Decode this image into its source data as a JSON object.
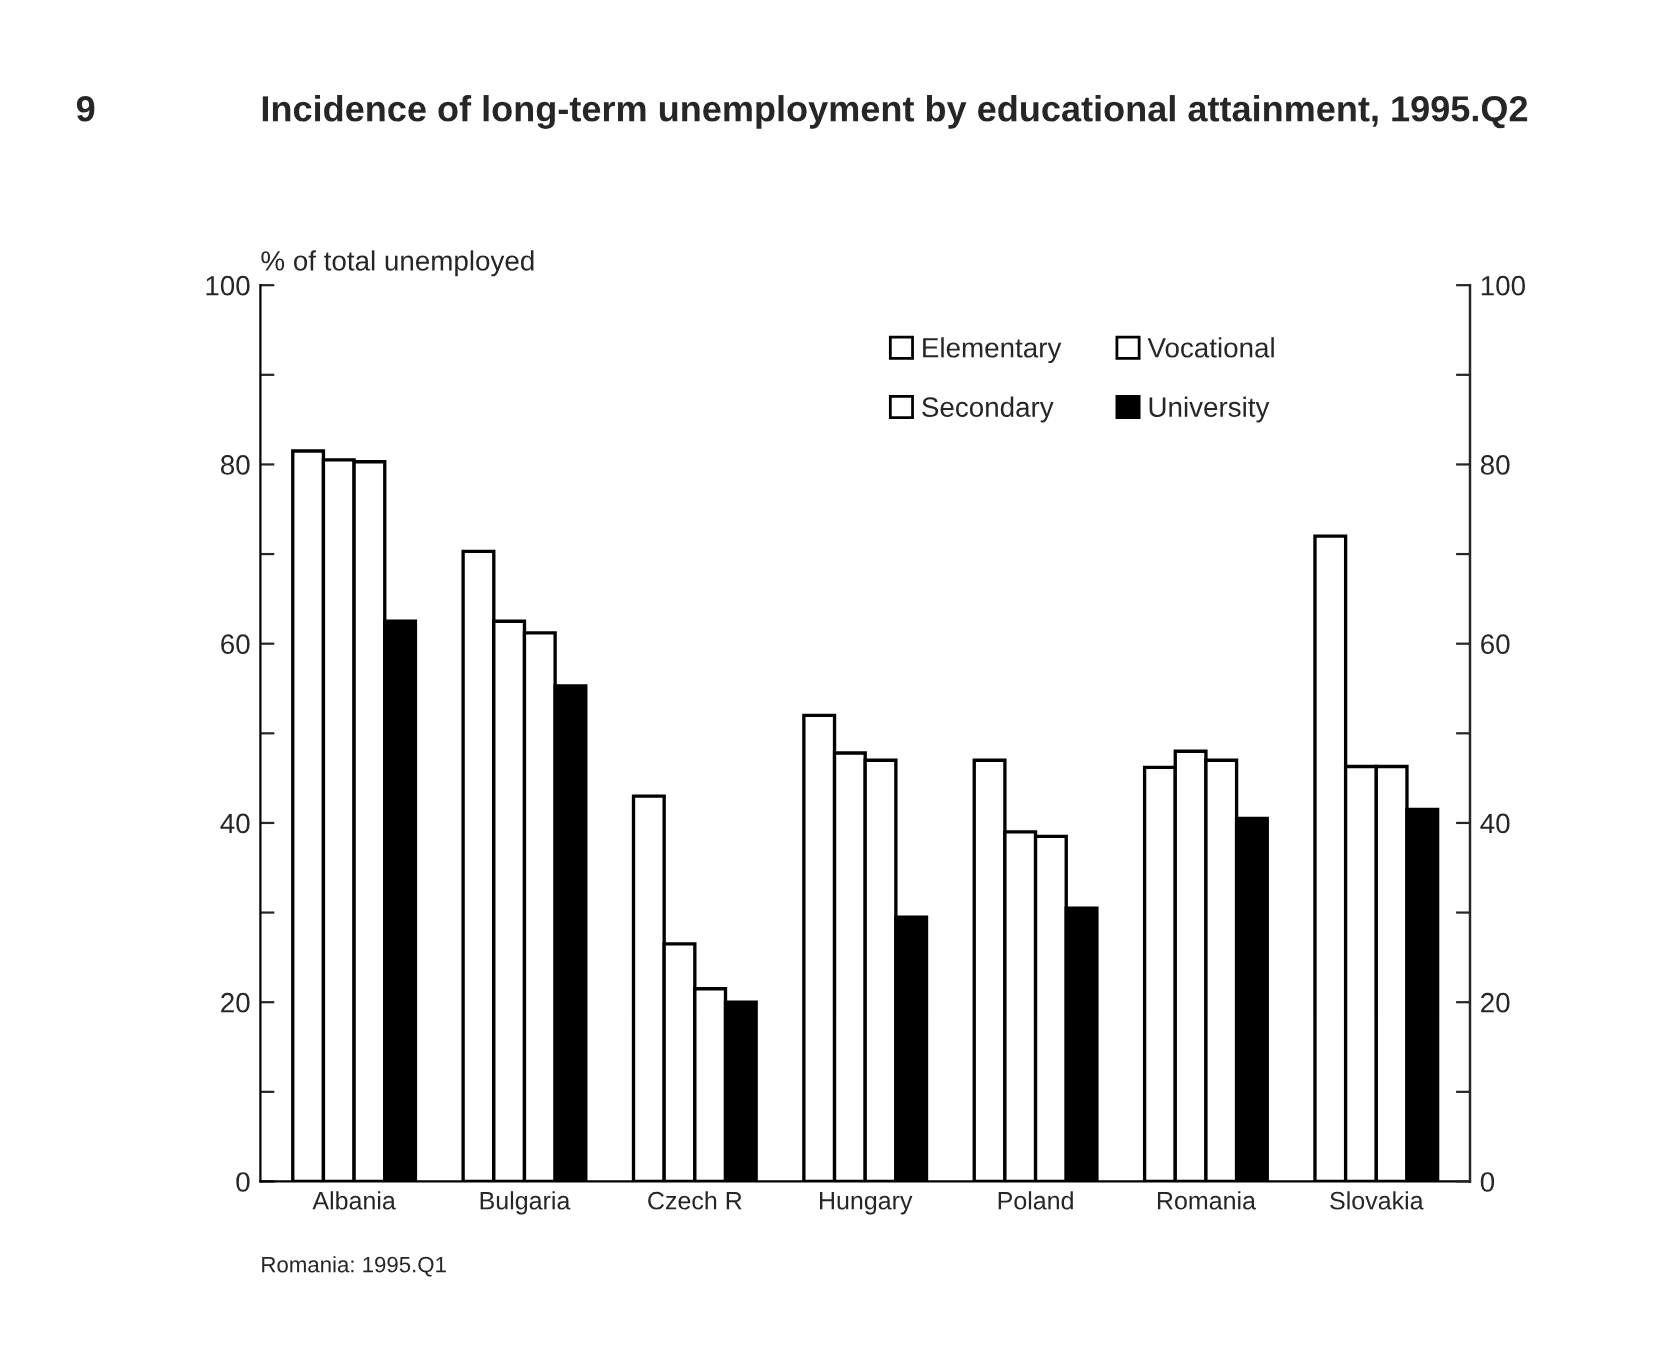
{
  "chart_data": {
    "type": "bar",
    "title": "Incidence of long-term unemployment by educational attainment, 1995.Q2",
    "ylabel": "% of total unemployed",
    "categories": [
      "Albania",
      "Bulgaria",
      "Czech R",
      "Hungary",
      "Poland",
      "Romania",
      "Slovakia"
    ],
    "series": [
      {
        "name": "Elementary",
        "color": "#ffffff",
        "values": [
          81.5,
          70.3,
          43,
          52,
          47,
          46.2,
          72
        ]
      },
      {
        "name": "Vocational",
        "color": "#ffffff",
        "values": [
          80.5,
          62.5,
          26.5,
          47.8,
          39,
          48,
          46.3
        ]
      },
      {
        "name": "Secondary",
        "color": "#ffffff",
        "values": [
          80.3,
          61.2,
          21.5,
          47,
          38.5,
          47,
          46.3
        ]
      },
      {
        "name": "University",
        "color": "#000000",
        "values": [
          62.5,
          55.3,
          20,
          29.5,
          30.5,
          40.5,
          41.5
        ]
      }
    ],
    "ylim": [
      0,
      100
    ],
    "yticks": [
      0,
      {
        "value": 10,
        "label": null
      },
      20,
      {
        "value": 30,
        "label": null
      },
      40,
      {
        "value": 50,
        "label": null
      },
      60,
      {
        "value": 70,
        "label": null
      },
      80,
      {
        "value": 90,
        "label": null
      },
      100
    ],
    "y2lim": [
      0,
      100
    ],
    "y2ticks": [
      0,
      {
        "value": 10,
        "label": null
      },
      20,
      {
        "value": 30,
        "label": null
      },
      40,
      {
        "value": 50,
        "label": null
      },
      60,
      {
        "value": 70,
        "label": null
      },
      80,
      {
        "value": 90,
        "label": null
      },
      100
    ],
    "legend": "top right",
    "grid": false,
    "annotations": [
      "9",
      "Romania: 1995.Q1"
    ]
  }
}
